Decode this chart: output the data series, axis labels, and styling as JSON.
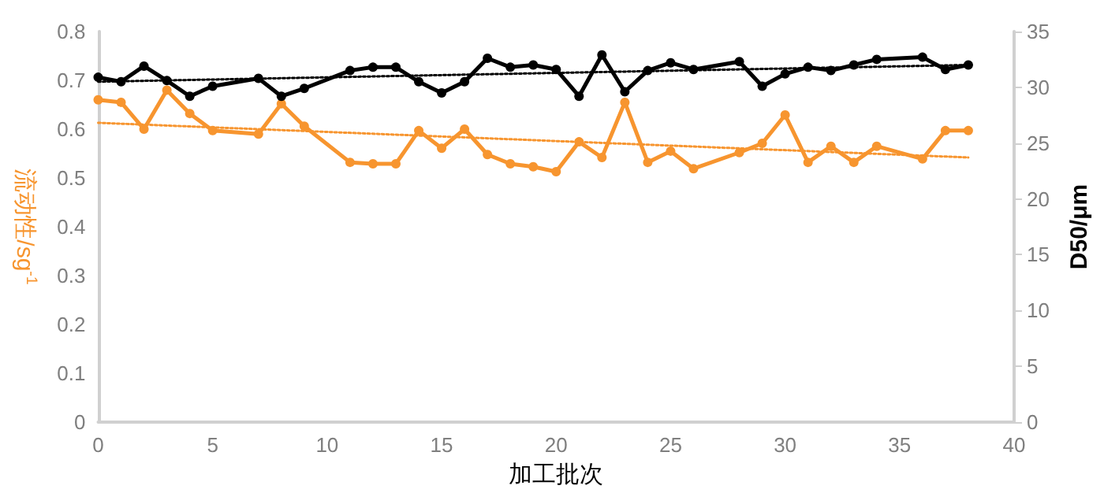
{
  "chart_data": {
    "type": "line",
    "xlabel": "加工批次",
    "ylabel": "流动性/sg$^{-1}$",
    "y2label": "D50/μm",
    "xlim": [
      0,
      40
    ],
    "xticks": [
      0,
      5,
      10,
      15,
      20,
      25,
      30,
      35,
      40
    ],
    "ylim": [
      0,
      0.8
    ],
    "yticks": [
      0,
      0.1,
      0.2,
      0.3,
      0.4,
      0.5,
      0.6,
      0.7,
      0.8
    ],
    "y2lim": [
      0,
      35
    ],
    "y2ticks": [
      0,
      5,
      10,
      15,
      20,
      25,
      30,
      35
    ],
    "grid": false,
    "marker": "circle",
    "line_style": "solid",
    "series": [
      {
        "color": "#f7952f",
        "x": [
          0,
          1,
          2,
          3,
          4,
          5,
          7,
          8,
          9,
          11,
          12,
          13,
          14,
          15,
          16,
          17,
          18,
          19,
          20,
          21,
          22,
          23,
          24,
          25,
          26,
          28,
          29,
          30,
          31,
          32,
          33,
          34,
          36,
          37,
          38
        ],
        "values": [
          0.66,
          0.655,
          0.6,
          0.68,
          0.632,
          0.597,
          0.59,
          0.652,
          0.606,
          0.532,
          0.529,
          0.529,
          0.597,
          0.561,
          0.6,
          0.548,
          0.529,
          0.523,
          0.513,
          0.574,
          0.542,
          0.655,
          0.532,
          0.555,
          0.519,
          0.552,
          0.571,
          0.629,
          0.532,
          0.565,
          0.532,
          0.565,
          0.539,
          0.597,
          0.597
        ]
      },
      {
        "color": "#000000",
        "axis": "y2",
        "x": [
          0,
          1,
          2,
          3,
          4,
          5,
          7,
          8,
          9,
          11,
          12,
          13,
          14,
          15,
          16,
          17,
          18,
          19,
          20,
          21,
          22,
          23,
          24,
          25,
          26,
          28,
          29,
          30,
          31,
          32,
          33,
          34,
          36,
          37,
          38
        ],
        "values": [
          30.9,
          30.5,
          31.9,
          30.6,
          29.2,
          30.1,
          30.8,
          29.2,
          29.9,
          31.5,
          31.8,
          31.8,
          30.5,
          29.5,
          30.5,
          32.6,
          31.8,
          32.0,
          31.6,
          29.2,
          32.9,
          29.6,
          31.5,
          32.2,
          31.6,
          32.3,
          30.1,
          31.2,
          31.8,
          31.5,
          32.0,
          32.5,
          32.7,
          31.6,
          32.0
        ]
      },
      {
        "type": "line",
        "color": "#f7952f",
        "marker": "none",
        "line_style": "dotted",
        "x": [
          0,
          38
        ],
        "values": [
          0.613,
          0.542
        ]
      },
      {
        "type": "line",
        "color": "#000000",
        "axis": "y2",
        "marker": "none",
        "line_style": "dotted",
        "x": [
          0,
          38
        ],
        "values": [
          30.5,
          32.0
        ]
      }
    ]
  }
}
